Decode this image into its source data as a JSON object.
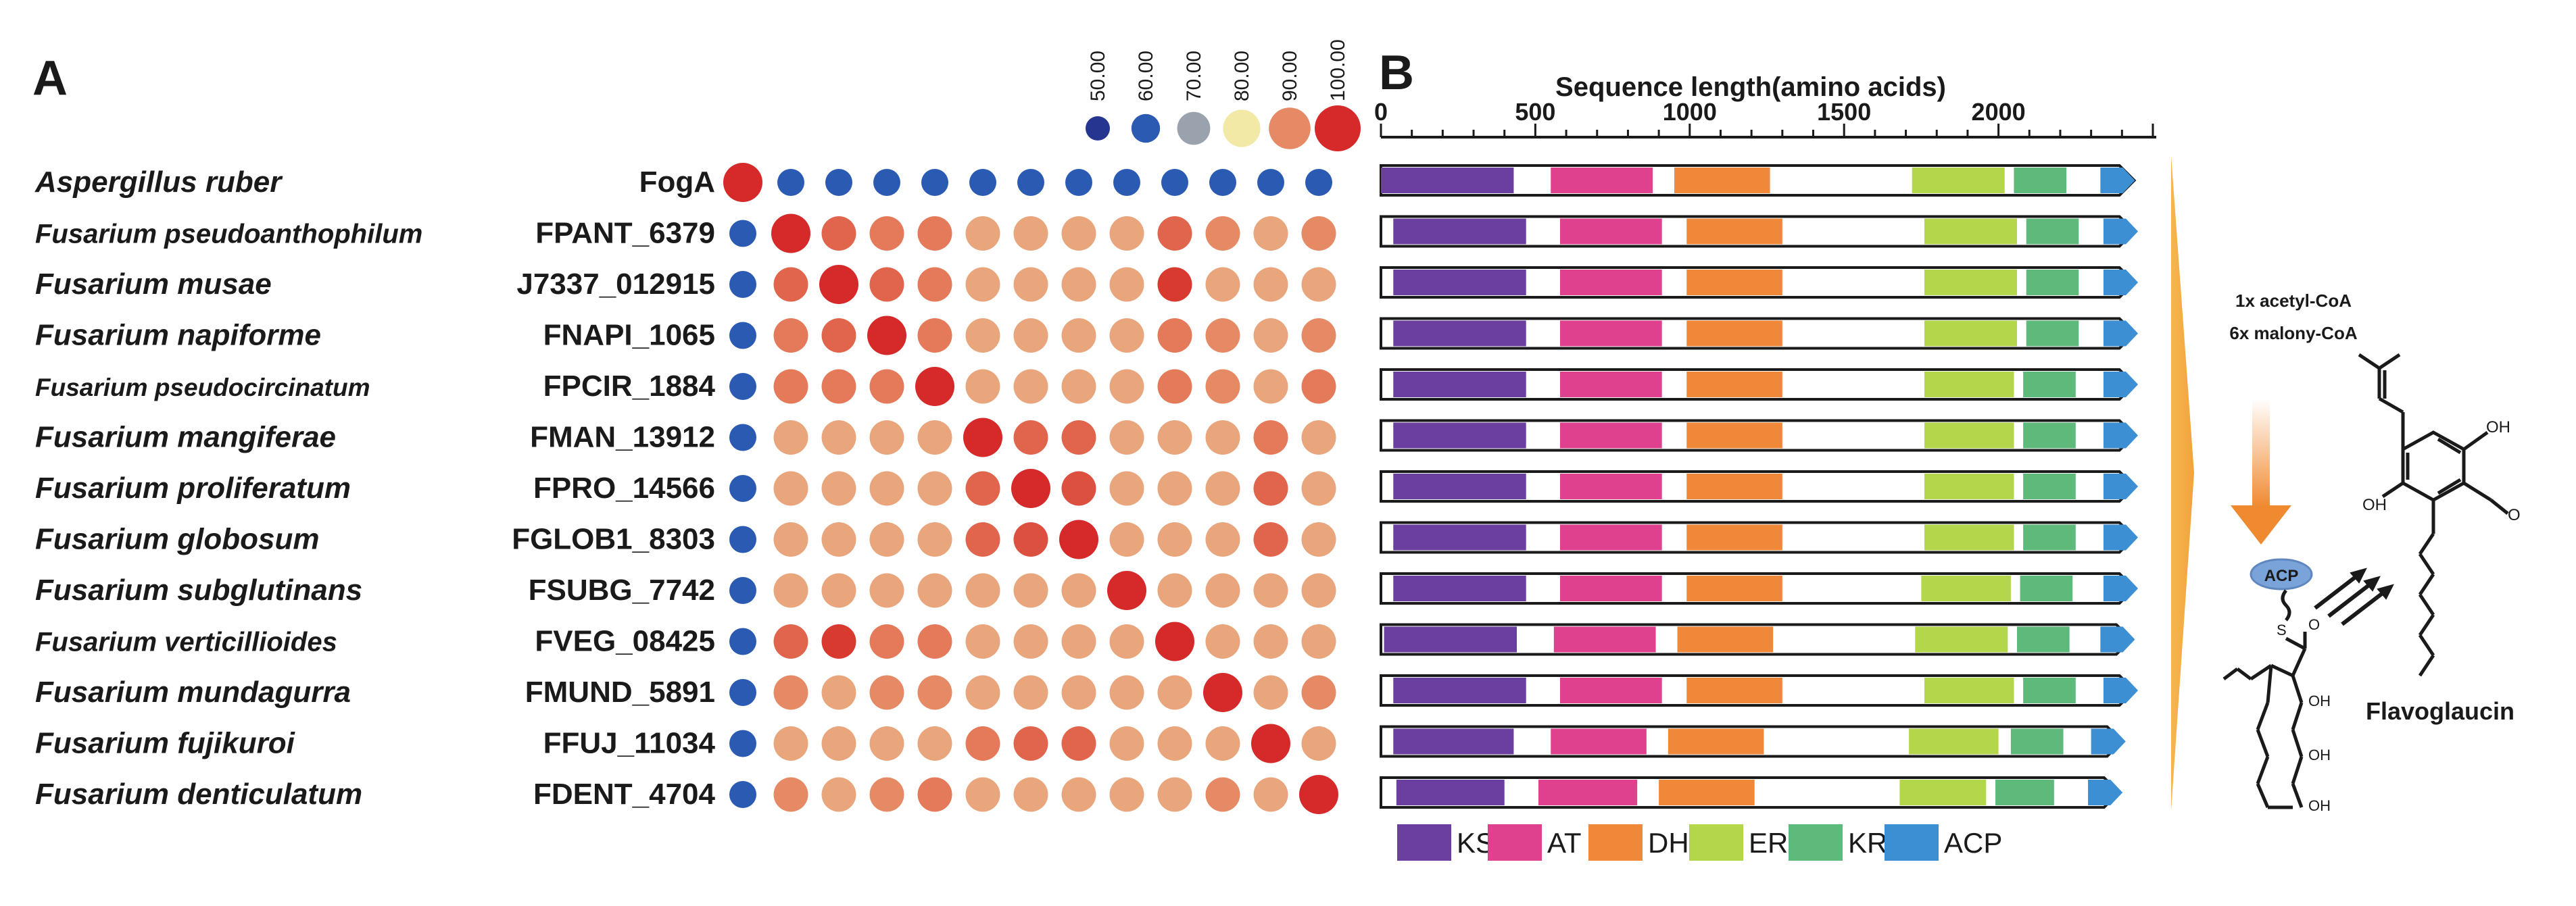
{
  "panel_a": {
    "label": "A",
    "legend": {
      "values": [
        "50.00",
        "60.00",
        "70.00",
        "80.00",
        "90.00",
        "100.00"
      ],
      "colors": [
        "#26358f",
        "#2b5ab3",
        "#9aa3ad",
        "#f2e9a6",
        "#e58a64",
        "#d62a2a"
      ]
    },
    "rows": [
      {
        "species": "Aspergillus ruber",
        "gene": "FogA",
        "values": [
          100,
          50,
          50,
          50,
          50,
          50,
          50,
          50,
          50,
          50,
          50,
          50,
          50
        ]
      },
      {
        "species": "Fusarium pseudoanthophilum",
        "gene": "FPANT_6379",
        "values": [
          50,
          100,
          90,
          89,
          88,
          86,
          86,
          86,
          86,
          91,
          87,
          86,
          87
        ]
      },
      {
        "species": "Fusarium musae",
        "gene": "J7337_012915",
        "values": [
          50,
          90,
          100,
          90,
          88,
          86,
          86,
          85,
          86,
          96,
          86,
          86,
          86
        ]
      },
      {
        "species": "Fusarium napiforme",
        "gene": "FNAPI_1065",
        "values": [
          50,
          89,
          90,
          100,
          88,
          86,
          86,
          86,
          86,
          89,
          87,
          86,
          87
        ]
      },
      {
        "species": "Fusarium pseudocircinatum",
        "gene": "FPCIR_1884",
        "values": [
          50,
          88,
          88,
          88,
          100,
          86,
          86,
          86,
          86,
          88,
          87,
          86,
          88
        ]
      },
      {
        "species": "Fusarium mangiferae",
        "gene": "FMAN_13912",
        "values": [
          50,
          86,
          86,
          86,
          86,
          100,
          91,
          90,
          86,
          86,
          86,
          88,
          86
        ]
      },
      {
        "species": "Fusarium proliferatum",
        "gene": "FPRO_14566",
        "values": [
          50,
          86,
          86,
          86,
          86,
          91,
          100,
          93,
          86,
          86,
          86,
          91,
          86
        ]
      },
      {
        "species": "Fusarium globosum",
        "gene": "FGLOB1_8303",
        "values": [
          50,
          86,
          85,
          86,
          86,
          90,
          93,
          100,
          86,
          86,
          86,
          90,
          86
        ]
      },
      {
        "species": "Fusarium subglutinans",
        "gene": "FSUBG_7742",
        "values": [
          50,
          86,
          86,
          86,
          86,
          86,
          86,
          86,
          100,
          86,
          86,
          86,
          86
        ]
      },
      {
        "species": "Fusarium verticillioides",
        "gene": "FVEG_08425",
        "values": [
          50,
          91,
          96,
          89,
          88,
          86,
          86,
          86,
          86,
          100,
          86,
          86,
          86
        ]
      },
      {
        "species": "Fusarium mundagurra",
        "gene": "FMUND_5891",
        "values": [
          50,
          87,
          86,
          87,
          87,
          86,
          86,
          86,
          86,
          86,
          100,
          86,
          87
        ]
      },
      {
        "species": "Fusarium fujikuroi",
        "gene": "FFUJ_11034",
        "values": [
          50,
          86,
          86,
          86,
          86,
          88,
          91,
          90,
          86,
          86,
          86,
          100,
          86
        ]
      },
      {
        "species": "Fusarium denticulatum",
        "gene": "FDENT_4704",
        "values": [
          50,
          87,
          86,
          87,
          88,
          86,
          86,
          86,
          86,
          86,
          87,
          86,
          100
        ]
      }
    ]
  },
  "panel_b": {
    "label": "B",
    "axis_title": "Sequence length(amino acids)",
    "axis_ticks": [
      0,
      500,
      1000,
      1500,
      2000
    ],
    "axis_max": 2500,
    "domain_colors": {
      "KS": "#6a3fa0",
      "AT": "#e0418f",
      "DH": "#f0883a",
      "ER": "#b3d64a",
      "KR": "#5dba7a",
      "ACP": "#3d8fd4"
    },
    "legend": [
      "KS",
      "AT",
      "DH",
      "ER",
      "KR",
      "ACP"
    ],
    "proteins": [
      {
        "length": 2440,
        "domains": [
          [
            "KS",
            0,
            430
          ],
          [
            "AT",
            550,
            880
          ],
          [
            "DH",
            950,
            1260
          ],
          [
            "ER",
            1720,
            2020
          ],
          [
            "KR",
            2050,
            2220
          ],
          [
            "ACP",
            2330,
            2420
          ]
        ]
      },
      {
        "length": 2440,
        "domains": [
          [
            "KS",
            40,
            470
          ],
          [
            "AT",
            580,
            910
          ],
          [
            "DH",
            990,
            1300
          ],
          [
            "ER",
            1760,
            2060
          ],
          [
            "KR",
            2090,
            2260
          ],
          [
            "ACP",
            2340,
            2430
          ]
        ]
      },
      {
        "length": 2440,
        "domains": [
          [
            "KS",
            40,
            470
          ],
          [
            "AT",
            580,
            910
          ],
          [
            "DH",
            990,
            1300
          ],
          [
            "ER",
            1760,
            2060
          ],
          [
            "KR",
            2090,
            2260
          ],
          [
            "ACP",
            2340,
            2430
          ]
        ]
      },
      {
        "length": 2440,
        "domains": [
          [
            "KS",
            40,
            470
          ],
          [
            "AT",
            580,
            910
          ],
          [
            "DH",
            990,
            1300
          ],
          [
            "ER",
            1760,
            2060
          ],
          [
            "KR",
            2090,
            2260
          ],
          [
            "ACP",
            2340,
            2430
          ]
        ]
      },
      {
        "length": 2440,
        "domains": [
          [
            "KS",
            40,
            470
          ],
          [
            "AT",
            580,
            910
          ],
          [
            "DH",
            990,
            1300
          ],
          [
            "ER",
            1760,
            2050
          ],
          [
            "KR",
            2080,
            2250
          ],
          [
            "ACP",
            2340,
            2430
          ]
        ]
      },
      {
        "length": 2440,
        "domains": [
          [
            "KS",
            40,
            470
          ],
          [
            "AT",
            580,
            910
          ],
          [
            "DH",
            990,
            1300
          ],
          [
            "ER",
            1760,
            2050
          ],
          [
            "KR",
            2080,
            2250
          ],
          [
            "ACP",
            2340,
            2430
          ]
        ]
      },
      {
        "length": 2440,
        "domains": [
          [
            "KS",
            40,
            470
          ],
          [
            "AT",
            580,
            910
          ],
          [
            "DH",
            990,
            1300
          ],
          [
            "ER",
            1760,
            2050
          ],
          [
            "KR",
            2080,
            2250
          ],
          [
            "ACP",
            2340,
            2430
          ]
        ]
      },
      {
        "length": 2440,
        "domains": [
          [
            "KS",
            40,
            470
          ],
          [
            "AT",
            580,
            910
          ],
          [
            "DH",
            990,
            1300
          ],
          [
            "ER",
            1760,
            2050
          ],
          [
            "KR",
            2080,
            2250
          ],
          [
            "ACP",
            2340,
            2430
          ]
        ]
      },
      {
        "length": 2440,
        "domains": [
          [
            "KS",
            40,
            470
          ],
          [
            "AT",
            580,
            910
          ],
          [
            "DH",
            990,
            1300
          ],
          [
            "ER",
            1750,
            2040
          ],
          [
            "KR",
            2070,
            2240
          ],
          [
            "ACP",
            2340,
            2430
          ]
        ]
      },
      {
        "length": 2430,
        "domains": [
          [
            "KS",
            10,
            440
          ],
          [
            "AT",
            560,
            890
          ],
          [
            "DH",
            960,
            1270
          ],
          [
            "ER",
            1730,
            2030
          ],
          [
            "KR",
            2060,
            2230
          ],
          [
            "ACP",
            2330,
            2420
          ]
        ]
      },
      {
        "length": 2440,
        "domains": [
          [
            "KS",
            40,
            470
          ],
          [
            "AT",
            580,
            910
          ],
          [
            "DH",
            990,
            1300
          ],
          [
            "ER",
            1760,
            2050
          ],
          [
            "KR",
            2080,
            2250
          ],
          [
            "ACP",
            2340,
            2430
          ]
        ]
      },
      {
        "length": 2400,
        "domains": [
          [
            "KS",
            40,
            430
          ],
          [
            "AT",
            550,
            860
          ],
          [
            "DH",
            930,
            1240
          ],
          [
            "ER",
            1710,
            2000
          ],
          [
            "KR",
            2040,
            2210
          ],
          [
            "ACP",
            2300,
            2390
          ]
        ]
      },
      {
        "length": 2390,
        "domains": [
          [
            "KS",
            50,
            400
          ],
          [
            "AT",
            510,
            830
          ],
          [
            "DH",
            900,
            1210
          ],
          [
            "ER",
            1680,
            1960
          ],
          [
            "KR",
            1990,
            2180
          ],
          [
            "ACP",
            2290,
            2380
          ]
        ]
      }
    ]
  },
  "pathway": {
    "precursor_1": "1x acetyl-CoA",
    "precursor_2": "6x malony-CoA",
    "acp_label": "ACP",
    "s_label": "S",
    "o_label": "O",
    "oh_label": "OH",
    "product": "Flavoglaucin",
    "arrow_color": "#f08a30"
  }
}
